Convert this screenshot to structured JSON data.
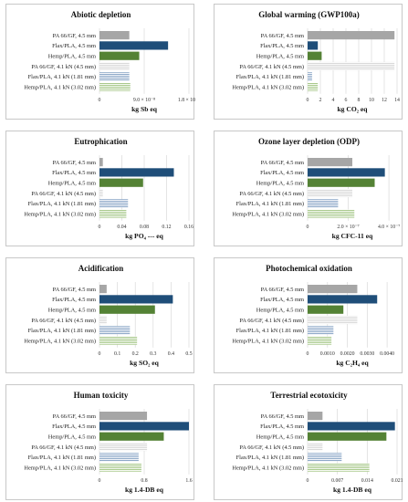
{
  "categories": [
    "PA 66/GF, 4.5 mm",
    "Flax/PLA, 4.5 mm",
    "Hemp/PLA, 4.5 mm",
    "PA 66/GF, 4.1 kN (4.5 mm)",
    "Flax/PLA, 4.1 kN (1.81 mm)",
    "Hemp/PLA, 4.1 kN (3.02 mm)"
  ],
  "bar_styles": [
    {
      "fill": "#a6a6a6",
      "pattern": "solid"
    },
    {
      "fill": "#1f4e79",
      "pattern": "solid"
    },
    {
      "fill": "#548235",
      "pattern": "solid"
    },
    {
      "fill": "#d9d9d9",
      "pattern": "hlines"
    },
    {
      "fill": "#8ea9c8",
      "pattern": "hlines"
    },
    {
      "fill": "#a9c98c",
      "pattern": "hlines"
    }
  ],
  "chart_data": [
    {
      "type": "bar",
      "orientation": "horizontal",
      "title": "Abiotic depletion",
      "xlabel": "kg Sb eq",
      "xlim": [
        0,
        1.8e-07
      ],
      "xticks": [
        0,
        9e-08,
        1.8e-07
      ],
      "xtick_labels": [
        "0",
        "9.0 × 10⁻⁸",
        "1.8 × 10⁻⁷"
      ],
      "values": [
        6e-08,
        1.38e-07,
        8e-08,
        6e-08,
        6e-08,
        6.2e-08
      ]
    },
    {
      "type": "bar",
      "orientation": "horizontal",
      "title": "Global warming (GWP100a)",
      "xlabel": "kg CO₂ eq",
      "xlim": [
        0,
        14
      ],
      "xticks": [
        0,
        2,
        4,
        6,
        8,
        10,
        12,
        14
      ],
      "xtick_labels": [
        "0",
        "2",
        "4",
        "6",
        "8",
        "10",
        "12",
        "14"
      ],
      "values": [
        13.6,
        1.6,
        2.2,
        13.6,
        0.7,
        1.6
      ]
    },
    {
      "type": "bar",
      "orientation": "horizontal",
      "title": "Eutrophication",
      "xlabel": "kg PO₄ --- eq",
      "xlim": [
        0,
        0.16
      ],
      "xticks": [
        0,
        0.04,
        0.08,
        0.12,
        0.16
      ],
      "xtick_labels": [
        "0",
        "0.04",
        "0.08",
        "0.12",
        "0.16"
      ],
      "values": [
        0.006,
        0.133,
        0.078,
        0.006,
        0.051,
        0.048
      ]
    },
    {
      "type": "bar",
      "orientation": "horizontal",
      "title": "Ozone layer depletion (ODP)",
      "xlabel": "kg CFC-11 eq",
      "xlim": [
        0,
        4.4e-07
      ],
      "xticks": [
        0,
        2e-07,
        4e-07
      ],
      "xtick_labels": [
        "0",
        "2.0 × 10⁻⁷",
        "4.0 × 10⁻⁷"
      ],
      "values": [
        2.2e-07,
        3.8e-07,
        3.3e-07,
        2.2e-07,
        1.5e-07,
        2.3e-07
      ]
    },
    {
      "type": "bar",
      "orientation": "horizontal",
      "title": "Acidification",
      "xlabel": "kg SO₂ eq",
      "xlim": [
        0,
        0.5
      ],
      "xticks": [
        0,
        0.1,
        0.2,
        0.3,
        0.4,
        0.5
      ],
      "xtick_labels": [
        "0",
        "0.1",
        "0.2",
        "0.3",
        "0.4",
        "0.5"
      ],
      "values": [
        0.04,
        0.41,
        0.31,
        0.04,
        0.17,
        0.21
      ]
    },
    {
      "type": "bar",
      "orientation": "horizontal",
      "title": "Photochemical oxidation",
      "xlabel": "kg C₂H₄ eq",
      "xlim": [
        0,
        0.0045
      ],
      "xticks": [
        0,
        0.001,
        0.002,
        0.003,
        0.004
      ],
      "xtick_labels": [
        "0",
        "0.0010",
        "0.0020",
        "0.0030",
        "0.0040"
      ],
      "values": [
        0.0025,
        0.0035,
        0.0018,
        0.0025,
        0.0013,
        0.0012
      ]
    },
    {
      "type": "bar",
      "orientation": "horizontal",
      "title": "Human toxicity",
      "xlabel": "kg 1.4-DB eq",
      "xlim": [
        0,
        1.6
      ],
      "xticks": [
        0,
        0.8,
        1.6
      ],
      "xtick_labels": [
        "0",
        "0.8",
        "1.6"
      ],
      "values": [
        0.85,
        1.6,
        1.15,
        0.85,
        0.7,
        0.75
      ]
    },
    {
      "type": "bar",
      "orientation": "horizontal",
      "title": "Terrestrial ecotoxicity",
      "xlabel": "kg 1.4-DB eq",
      "xlim": [
        0,
        0.021
      ],
      "xticks": [
        0,
        0.007,
        0.014,
        0.021
      ],
      "xtick_labels": [
        "0",
        "0.007",
        "0.014",
        "0.021"
      ],
      "values": [
        0.0035,
        0.0205,
        0.0185,
        0.0035,
        0.008,
        0.0145
      ]
    }
  ]
}
